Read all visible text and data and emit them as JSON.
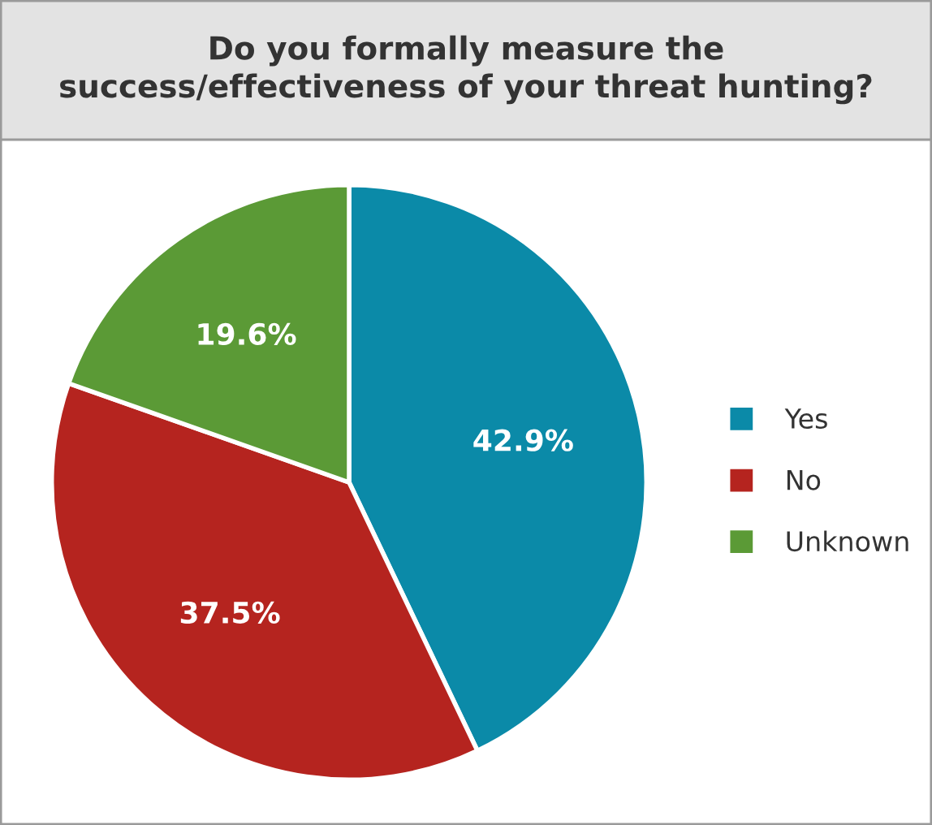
{
  "chart_data": {
    "type": "pie",
    "title": "Do you formally measure the\nsuccess/effectiveness of your threat hunting?",
    "categories": [
      "Yes",
      "No",
      "Unknown"
    ],
    "values": [
      42.9,
      37.5,
      19.6
    ],
    "value_labels": [
      "42.9%",
      "37.5%",
      "19.6%"
    ],
    "colors": [
      "#0b8aa8",
      "#b5241f",
      "#5b9a36"
    ],
    "legend": "right"
  }
}
